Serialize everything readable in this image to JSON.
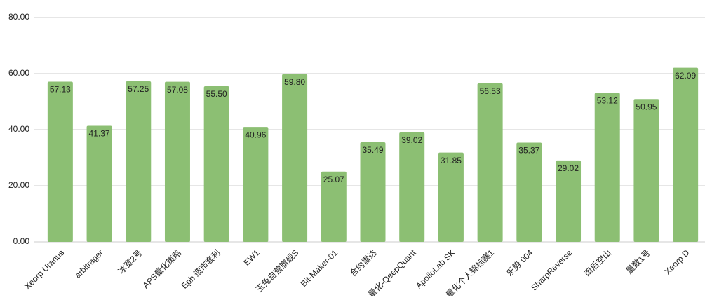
{
  "chart_data": {
    "type": "bar",
    "categories": [
      "Xeorp Uranus",
      "arbitrager",
      "冰宽2号",
      "APS量化策略",
      "Eph 造市套利",
      "EW1",
      "玉兔自营旗舰S",
      "Bit-Maker-01",
      "合约雷达",
      "量化-QeepQuant",
      "ApolloLab SK",
      "量化个人锦标赛1",
      "乐势 004",
      "SharpReverse",
      "雨后空山",
      "量数1号",
      "Xeorp D"
    ],
    "values": [
      57.13,
      41.37,
      57.25,
      57.08,
      55.5,
      40.96,
      59.8,
      25.07,
      35.49,
      39.02,
      31.85,
      56.53,
      35.37,
      29.02,
      53.12,
      50.95,
      62.09
    ],
    "value_labels": [
      "57.13",
      "41.37",
      "57.25",
      "57.08",
      "55.50",
      "40.96",
      "59.80",
      "25.07",
      "35.49",
      "39.02",
      "31.85",
      "56.53",
      "35.37",
      "29.02",
      "53.12",
      "50.95",
      "62.09"
    ],
    "color": "#8cbf73",
    "ylim": [
      0,
      80
    ],
    "yticks": [
      {
        "value": 0,
        "label": "0.00"
      },
      {
        "value": 20,
        "label": "20.00"
      },
      {
        "value": 40,
        "label": "40.00"
      },
      {
        "value": 60,
        "label": "60.00"
      },
      {
        "value": 80,
        "label": "80.00"
      }
    ],
    "grid": true
  }
}
